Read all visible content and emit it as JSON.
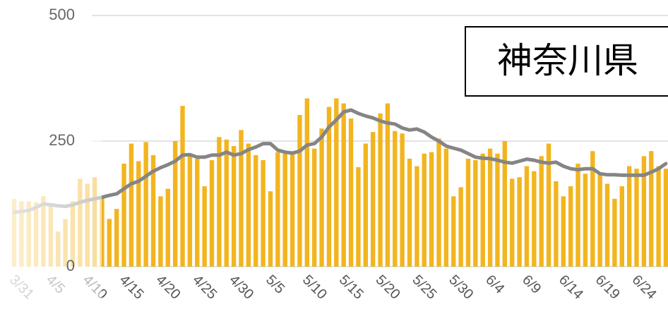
{
  "chart_data": {
    "type": "bar",
    "title": "神奈川県",
    "categories": [
      null,
      "3/31",
      null,
      null,
      null,
      null,
      "4/5",
      null,
      null,
      null,
      null,
      "4/10",
      null,
      null,
      null,
      null,
      "4/15",
      null,
      null,
      null,
      null,
      "4/20",
      null,
      null,
      null,
      null,
      "4/25",
      null,
      null,
      null,
      null,
      "4/30",
      null,
      null,
      null,
      null,
      "5/5",
      null,
      null,
      null,
      null,
      "5/10",
      null,
      null,
      null,
      null,
      "5/15",
      null,
      null,
      null,
      null,
      "5/20",
      null,
      null,
      null,
      null,
      "5/25",
      null,
      null,
      null,
      null,
      "5/30",
      null,
      null,
      null,
      null,
      "6/4",
      null,
      null,
      null,
      null,
      "6/9",
      null,
      null,
      null,
      null,
      "6/14",
      null,
      null,
      null,
      null,
      "6/19",
      null,
      null,
      null,
      null,
      "6/24",
      null,
      null,
      null
    ],
    "series": [
      {
        "type": "bar",
        "color": "#f2b51f",
        "values": [
          135,
          130,
          130,
          128,
          140,
          120,
          70,
          95,
          130,
          175,
          165,
          178,
          140,
          95,
          115,
          205,
          245,
          210,
          248,
          222,
          140,
          155,
          250,
          320,
          225,
          215,
          160,
          212,
          258,
          253,
          240,
          272,
          245,
          222,
          212,
          150,
          228,
          225,
          230,
          302,
          335,
          235,
          275,
          318,
          335,
          325,
          295,
          198,
          245,
          268,
          305,
          325,
          270,
          265,
          215,
          200,
          225,
          228,
          255,
          235,
          140,
          158,
          215,
          212,
          225,
          235,
          225,
          250,
          175,
          178,
          200,
          190,
          220,
          245,
          170,
          140,
          160,
          205,
          185,
          230,
          185,
          165,
          135,
          160,
          200,
          195,
          220,
          230,
          200,
          195
        ]
      },
      {
        "type": "line",
        "color": "#858585",
        "values": [
          108,
          110,
          112,
          118,
          125,
          123,
          121,
          120,
          123,
          128,
          132,
          135,
          138,
          142,
          145,
          155,
          165,
          170,
          180,
          190,
          197,
          203,
          210,
          222,
          223,
          218,
          218,
          222,
          222,
          228,
          222,
          225,
          233,
          238,
          245,
          245,
          232,
          228,
          226,
          230,
          242,
          245,
          258,
          278,
          292,
          308,
          312,
          305,
          300,
          296,
          290,
          286,
          284,
          276,
          272,
          274,
          268,
          258,
          250,
          240,
          236,
          232,
          225,
          218,
          216,
          215,
          212,
          208,
          206,
          210,
          214,
          212,
          208,
          206,
          208,
          200,
          195,
          193,
          195,
          195,
          185,
          183,
          183,
          182,
          182,
          182,
          182,
          188,
          195,
          205
        ]
      }
    ],
    "ylim": [
      0,
      500
    ],
    "yticks": [
      0,
      250,
      500
    ],
    "grid": true
  }
}
